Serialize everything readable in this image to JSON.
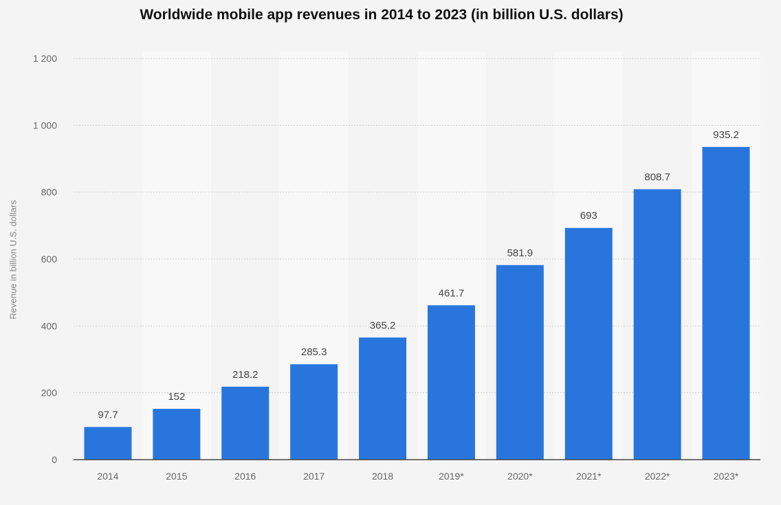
{
  "chart_data": {
    "type": "bar",
    "title": "Worldwide mobile app revenues in 2014 to 2023 (in billion U.S. dollars)",
    "xlabel": "",
    "ylabel": "Revenue in billion U.S. dollars",
    "categories": [
      "2014",
      "2015",
      "2016",
      "2017",
      "2018",
      "2019*",
      "2020*",
      "2021*",
      "2022*",
      "2023*"
    ],
    "values": [
      97.7,
      152,
      218.2,
      285.3,
      365.2,
      461.7,
      581.9,
      693,
      808.7,
      935.2
    ],
    "data_labels": [
      "97.7",
      "152",
      "218.2",
      "285.3",
      "365.2",
      "461.7",
      "581.9",
      "693",
      "808.7",
      "935.2"
    ],
    "ylim": [
      0,
      1200
    ],
    "yticks": [
      0,
      200,
      400,
      600,
      800,
      1000,
      1200
    ],
    "ytick_labels": [
      "0",
      "200",
      "400",
      "600",
      "800",
      "1 000",
      "1 200"
    ],
    "grid": true,
    "bar_color": "#2876dd"
  }
}
